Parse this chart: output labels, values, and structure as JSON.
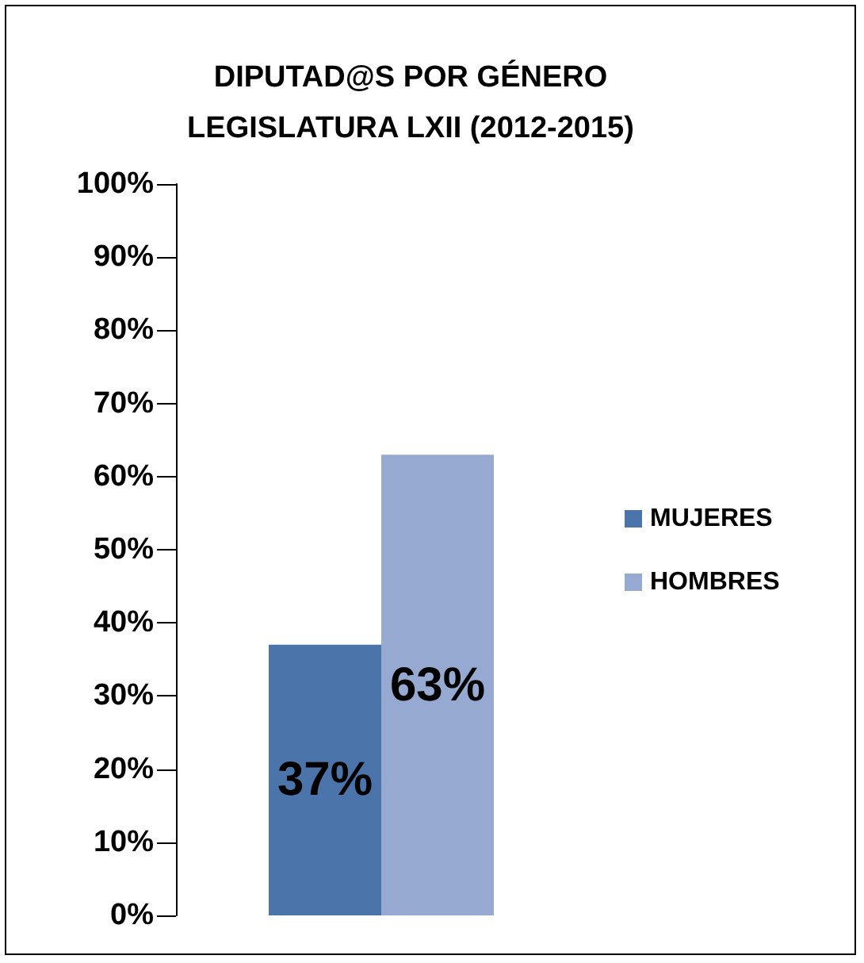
{
  "chart_data": {
    "type": "bar",
    "title": "DIPUTAD@S POR GÉNERO\nLEGISLATURA LXII (2012-2015)",
    "categories": [
      null
    ],
    "series": [
      {
        "name": "MUJERES",
        "color": "#4a74aa",
        "values": [
          37
        ],
        "value_labels": [
          "37%"
        ]
      },
      {
        "name": "HOMBRES",
        "color": "#95a9d1",
        "values": [
          63
        ],
        "value_labels": [
          "63%"
        ]
      }
    ],
    "ylim": [
      0,
      100
    ],
    "yticks": [
      {
        "value": 0,
        "label": "0%"
      },
      {
        "value": 10,
        "label": "10%"
      },
      {
        "value": 20,
        "label": "20%"
      },
      {
        "value": 30,
        "label": "30%"
      },
      {
        "value": 40,
        "label": "40%"
      },
      {
        "value": 50,
        "label": "50%"
      },
      {
        "value": 60,
        "label": "60%"
      },
      {
        "value": 70,
        "label": "70%"
      },
      {
        "value": 80,
        "label": "80%"
      },
      {
        "value": 90,
        "label": "90%"
      },
      {
        "value": 100,
        "label": "100%"
      }
    ],
    "grid": false,
    "legend": "right"
  }
}
